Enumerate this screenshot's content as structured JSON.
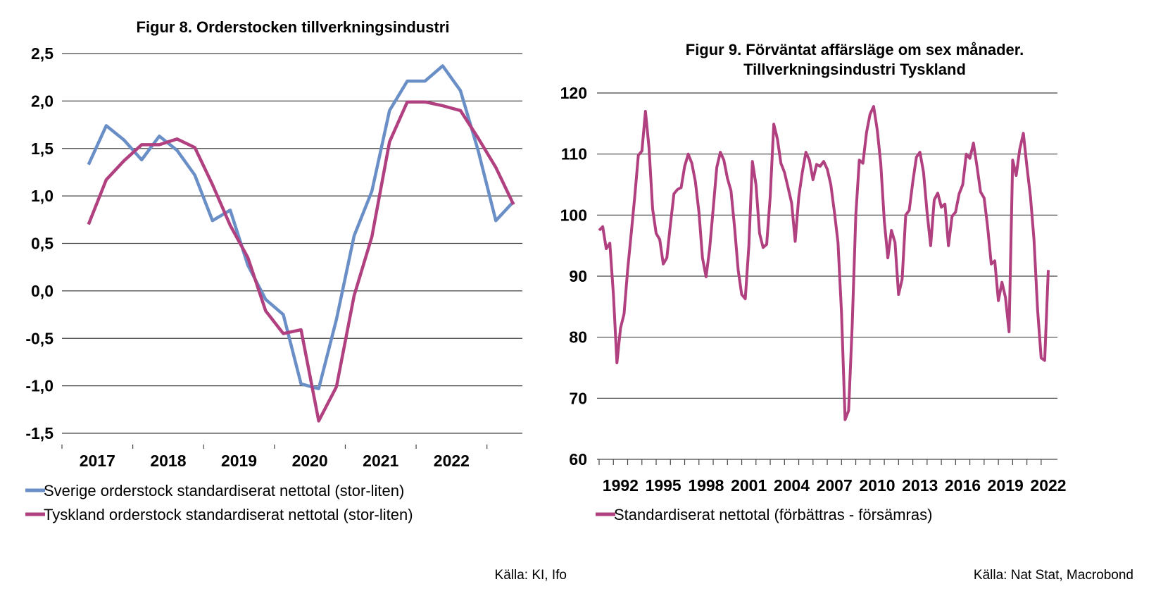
{
  "chart_data": [
    {
      "type": "line",
      "title": "Figur 8. Orderstocken tillverkningsindustri",
      "ylim": [
        -1.5,
        2.5
      ],
      "yticks": [
        "2,5",
        "2,0",
        "1,5",
        "1,0",
        "0,5",
        "0,0",
        "-0,5",
        "-1,0",
        "-1,5"
      ],
      "ytick_values": [
        2.5,
        2.0,
        1.5,
        1.0,
        0.5,
        0.0,
        -0.5,
        -1.0,
        -1.5
      ],
      "xtick_labels": [
        "2017",
        "2018",
        "2019",
        "2020",
        "2021",
        "2022"
      ],
      "x_start": 2016.875,
      "x_step": 0.25,
      "legend_position": "bottom",
      "grid": true,
      "series": [
        {
          "name": "Sverige orderstock standardiserat nettotal (stor-liten)",
          "color": "#6a8fc7",
          "values": [
            1.33,
            1.74,
            1.59,
            1.38,
            1.63,
            1.48,
            1.22,
            0.74,
            0.85,
            0.27,
            -0.09,
            -0.25,
            -0.98,
            -1.03,
            -0.3,
            0.58,
            1.05,
            1.9,
            2.21,
            2.21,
            2.37,
            2.11,
            1.48,
            0.74,
            0.94
          ]
        },
        {
          "name": "Tyskland orderstock standardiserat nettotal (stor-liten)",
          "color": "#b0407f",
          "values": [
            0.7,
            1.17,
            1.37,
            1.54,
            1.54,
            1.6,
            1.51,
            1.12,
            0.69,
            0.35,
            -0.21,
            -0.45,
            -0.41,
            -1.37,
            -1.01,
            -0.05,
            0.57,
            1.57,
            1.99,
            1.99,
            1.95,
            1.9,
            1.61,
            1.3,
            0.91
          ]
        }
      ],
      "source": "Källa: KI, Ifo"
    },
    {
      "type": "line",
      "title_line1": "Figur 9. Förväntat affärsläge om sex månader.",
      "title_line2": "Tillverkningsindustri Tyskland",
      "ylim": [
        60,
        120
      ],
      "yticks": [
        "120",
        "110",
        "100",
        "90",
        "80",
        "70",
        "60"
      ],
      "ytick_values": [
        120,
        110,
        100,
        90,
        80,
        70,
        60
      ],
      "xtick_labels": [
        "1992",
        "1995",
        "1998",
        "2001",
        "2004",
        "2007",
        "2010",
        "2013",
        "2016",
        "2019",
        "2022"
      ],
      "xtick_years": [
        1992,
        1995,
        1998,
        2001,
        2004,
        2007,
        2010,
        2013,
        2016,
        2019,
        2022
      ],
      "x_range": [
        1991.0,
        2023.0
      ],
      "legend_position": "bottom",
      "grid": true,
      "series": [
        {
          "name": "Standardiserat nettotal (förbättras - försämras)",
          "color": "#b0407f",
          "points": [
            [
              1991.0,
              97.5
            ],
            [
              1991.25,
              98.1
            ],
            [
              1991.5,
              94.5
            ],
            [
              1991.75,
              95.4
            ],
            [
              1992.0,
              87.0
            ],
            [
              1992.25,
              75.8
            ],
            [
              1992.5,
              81.5
            ],
            [
              1992.75,
              83.8
            ],
            [
              1993.0,
              91.0
            ],
            [
              1993.25,
              97.0
            ],
            [
              1993.5,
              103.0
            ],
            [
              1993.75,
              109.8
            ],
            [
              1994.0,
              110.5
            ],
            [
              1994.25,
              117.0
            ],
            [
              1994.5,
              111.0
            ],
            [
              1994.75,
              101.0
            ],
            [
              1995.0,
              97.0
            ],
            [
              1995.25,
              96.0
            ],
            [
              1995.5,
              92.0
            ],
            [
              1995.75,
              93.0
            ],
            [
              1996.0,
              98.5
            ],
            [
              1996.25,
              103.5
            ],
            [
              1996.5,
              104.2
            ],
            [
              1996.75,
              104.5
            ],
            [
              1997.0,
              108.0
            ],
            [
              1997.25,
              110.0
            ],
            [
              1997.5,
              108.5
            ],
            [
              1997.75,
              105.5
            ],
            [
              1998.0,
              100.5
            ],
            [
              1998.25,
              93.0
            ],
            [
              1998.5,
              89.9
            ],
            [
              1998.75,
              94.5
            ],
            [
              1999.0,
              101.0
            ],
            [
              1999.25,
              107.8
            ],
            [
              1999.5,
              110.3
            ],
            [
              1999.75,
              109.0
            ],
            [
              2000.0,
              106.0
            ],
            [
              2000.25,
              104.0
            ],
            [
              2000.5,
              98.0
            ],
            [
              2000.75,
              91.0
            ],
            [
              2001.0,
              87.0
            ],
            [
              2001.25,
              86.3
            ],
            [
              2001.5,
              95.0
            ],
            [
              2001.75,
              108.8
            ],
            [
              2002.0,
              105.0
            ],
            [
              2002.25,
              97.0
            ],
            [
              2002.5,
              94.7
            ],
            [
              2002.75,
              95.2
            ],
            [
              2003.0,
              103.0
            ],
            [
              2003.25,
              114.9
            ],
            [
              2003.5,
              112.5
            ],
            [
              2003.75,
              108.5
            ],
            [
              2004.0,
              107.0
            ],
            [
              2004.25,
              104.5
            ],
            [
              2004.5,
              102.0
            ],
            [
              2004.75,
              95.7
            ],
            [
              2005.0,
              103.0
            ],
            [
              2005.25,
              107.0
            ],
            [
              2005.5,
              110.3
            ],
            [
              2005.75,
              109.0
            ],
            [
              2006.0,
              105.8
            ],
            [
              2006.25,
              108.3
            ],
            [
              2006.5,
              108.0
            ],
            [
              2006.75,
              108.8
            ],
            [
              2007.0,
              107.5
            ],
            [
              2007.25,
              105.0
            ],
            [
              2007.5,
              100.5
            ],
            [
              2007.75,
              95.5
            ],
            [
              2008.0,
              84.0
            ],
            [
              2008.25,
              66.5
            ],
            [
              2008.5,
              68.0
            ],
            [
              2008.75,
              82.0
            ],
            [
              2009.0,
              100.0
            ],
            [
              2009.25,
              109.0
            ],
            [
              2009.5,
              108.5
            ],
            [
              2009.75,
              113.5
            ],
            [
              2010.0,
              116.5
            ],
            [
              2010.25,
              117.8
            ],
            [
              2010.5,
              114.0
            ],
            [
              2010.75,
              108.5
            ],
            [
              2011.0,
              99.0
            ],
            [
              2011.25,
              93.0
            ],
            [
              2011.5,
              97.5
            ],
            [
              2011.75,
              95.5
            ],
            [
              2012.0,
              87.0
            ],
            [
              2012.25,
              89.5
            ],
            [
              2012.5,
              100.0
            ],
            [
              2012.75,
              100.8
            ],
            [
              2013.0,
              105.5
            ],
            [
              2013.25,
              109.5
            ],
            [
              2013.5,
              110.3
            ],
            [
              2013.75,
              107.0
            ],
            [
              2014.0,
              100.5
            ],
            [
              2014.25,
              95.0
            ],
            [
              2014.5,
              102.5
            ],
            [
              2014.75,
              103.6
            ],
            [
              2015.0,
              101.3
            ],
            [
              2015.25,
              101.8
            ],
            [
              2015.5,
              95.0
            ],
            [
              2015.75,
              99.8
            ],
            [
              2016.0,
              100.5
            ],
            [
              2016.25,
              103.5
            ],
            [
              2016.5,
              105.0
            ],
            [
              2016.75,
              110.0
            ],
            [
              2017.0,
              109.3
            ],
            [
              2017.25,
              111.8
            ],
            [
              2017.5,
              108.0
            ],
            [
              2017.75,
              103.8
            ],
            [
              2018.0,
              102.8
            ],
            [
              2018.25,
              98.0
            ],
            [
              2018.5,
              92.0
            ],
            [
              2018.75,
              92.5
            ],
            [
              2019.0,
              86.0
            ],
            [
              2019.25,
              89.0
            ],
            [
              2019.5,
              86.5
            ],
            [
              2019.75,
              80.9
            ],
            [
              2020.0,
              109.0
            ],
            [
              2020.25,
              106.5
            ],
            [
              2020.5,
              110.8
            ],
            [
              2020.75,
              113.4
            ],
            [
              2021.0,
              108.0
            ],
            [
              2021.25,
              103.0
            ],
            [
              2021.5,
              96.0
            ],
            [
              2021.75,
              84.5
            ],
            [
              2022.0,
              76.6
            ],
            [
              2022.25,
              76.2
            ],
            [
              2022.5,
              91.0
            ]
          ]
        }
      ],
      "source": "Källa: Nat Stat, Macrobond"
    }
  ]
}
